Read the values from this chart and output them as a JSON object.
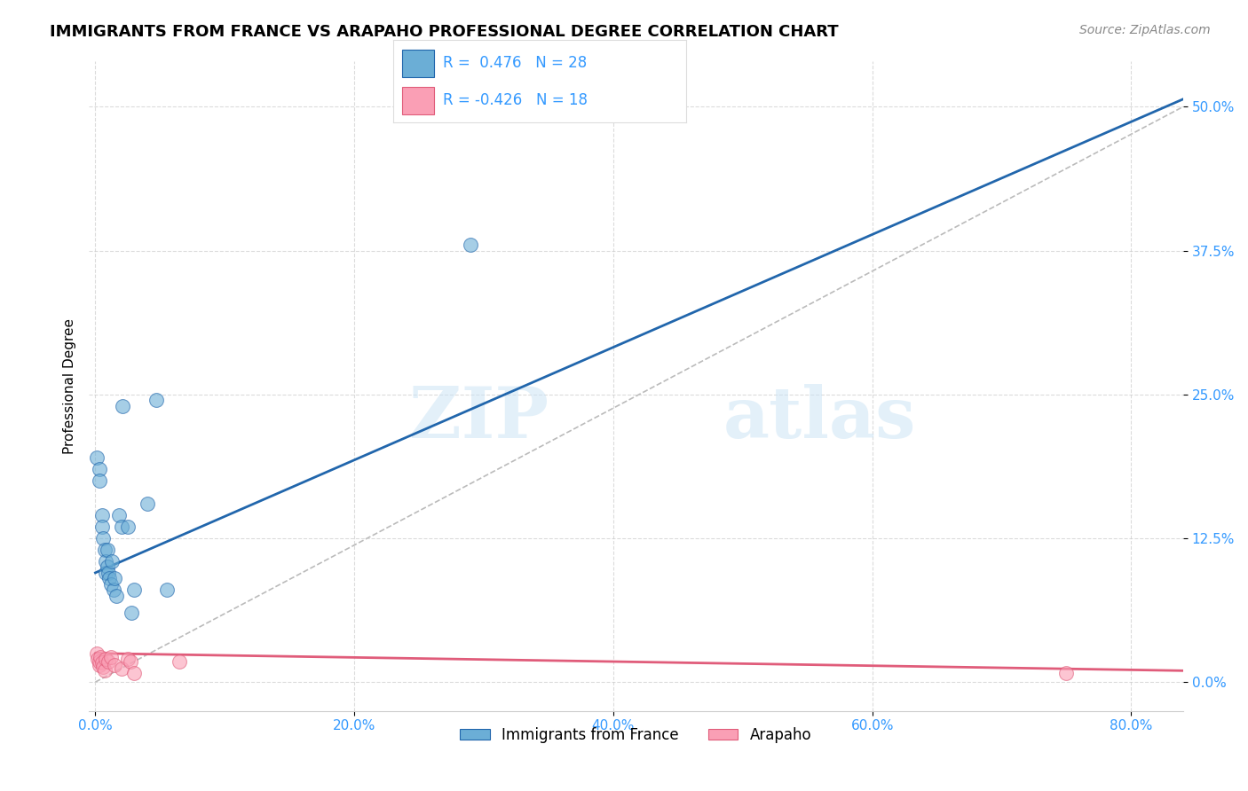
{
  "title": "IMMIGRANTS FROM FRANCE VS ARAPAHO PROFESSIONAL DEGREE CORRELATION CHART",
  "source": "Source: ZipAtlas.com",
  "xlim": [
    -0.005,
    0.84
  ],
  "ylim": [
    -0.025,
    0.54
  ],
  "ytick_vals": [
    0.0,
    0.125,
    0.25,
    0.375,
    0.5
  ],
  "xtick_vals": [
    0.0,
    0.2,
    0.4,
    0.6,
    0.8
  ],
  "blue_scatter_x": [
    0.001,
    0.003,
    0.003,
    0.005,
    0.005,
    0.006,
    0.007,
    0.008,
    0.008,
    0.009,
    0.009,
    0.01,
    0.011,
    0.012,
    0.013,
    0.014,
    0.015,
    0.016,
    0.018,
    0.02,
    0.021,
    0.025,
    0.028,
    0.03,
    0.04,
    0.047,
    0.055,
    0.29
  ],
  "blue_scatter_y": [
    0.195,
    0.185,
    0.175,
    0.145,
    0.135,
    0.125,
    0.115,
    0.105,
    0.095,
    0.115,
    0.1,
    0.095,
    0.09,
    0.085,
    0.105,
    0.08,
    0.09,
    0.075,
    0.145,
    0.135,
    0.24,
    0.135,
    0.06,
    0.08,
    0.155,
    0.245,
    0.08,
    0.38
  ],
  "pink_scatter_x": [
    0.001,
    0.002,
    0.003,
    0.003,
    0.004,
    0.005,
    0.006,
    0.007,
    0.008,
    0.01,
    0.012,
    0.015,
    0.02,
    0.025,
    0.027,
    0.03,
    0.065,
    0.75
  ],
  "pink_scatter_y": [
    0.025,
    0.02,
    0.015,
    0.018,
    0.022,
    0.017,
    0.013,
    0.01,
    0.02,
    0.018,
    0.022,
    0.015,
    0.012,
    0.02,
    0.018,
    0.008,
    0.018,
    0.008
  ],
  "blue_line_y_intercept": 0.095,
  "blue_line_slope": 0.49,
  "pink_line_y_intercept": 0.025,
  "pink_line_slope": -0.018,
  "dashed_line_x": [
    0.0,
    0.84
  ],
  "dashed_line_y": [
    0.0,
    0.5
  ],
  "blue_color": "#6baed6",
  "blue_line_color": "#2166ac",
  "pink_color": "#fa9fb5",
  "pink_line_color": "#e05c7a",
  "dashed_color": "#aaaaaa",
  "R_blue": 0.476,
  "N_blue": 28,
  "R_pink": -0.426,
  "N_pink": 18,
  "legend_label_blue": "Immigrants from France",
  "legend_label_pink": "Arapaho",
  "ylabel": "Professional Degree",
  "watermark_zip": "ZIP",
  "watermark_atlas": "atlas",
  "title_fontsize": 13,
  "axis_fontsize": 11,
  "tick_fontsize": 11,
  "legend_fontsize": 12,
  "source_fontsize": 10
}
